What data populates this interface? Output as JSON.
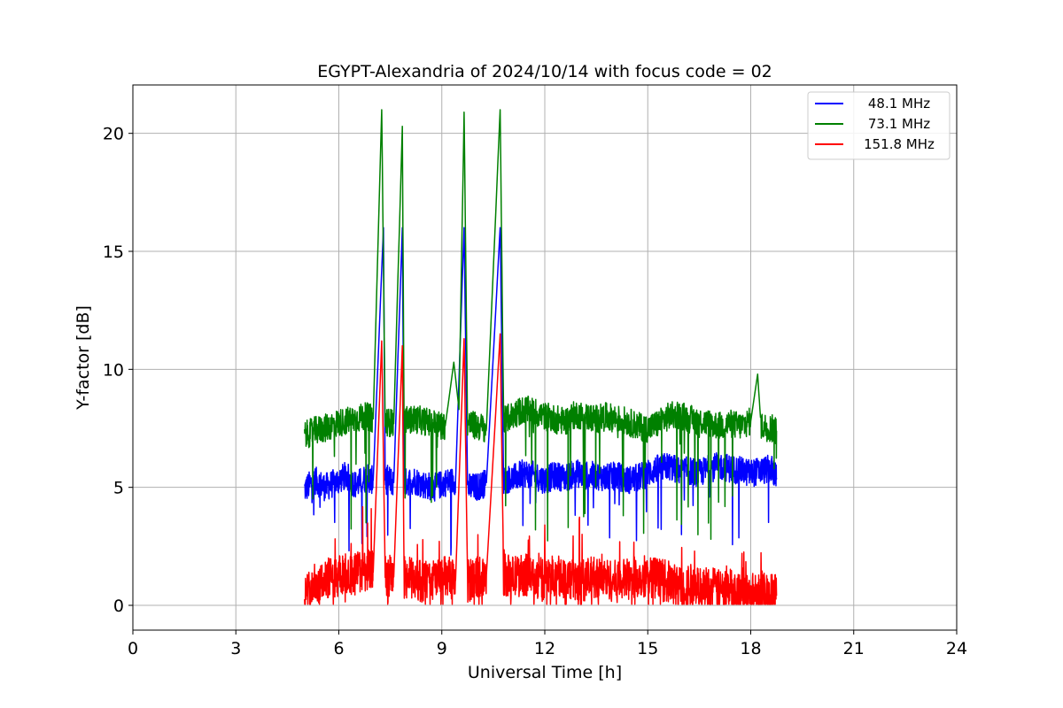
{
  "chart_data": {
    "type": "line",
    "title": "EGYPT-Alexandria of 2024/10/14 with focus code = 02",
    "xlabel": "Universal Time [h]",
    "ylabel": "Y-factor [dB]",
    "xlim": [
      0,
      24
    ],
    "ylim": [
      -1.05,
      22.05
    ],
    "x_ticks": [
      "0",
      "3",
      "6",
      "9",
      "12",
      "15",
      "18",
      "21",
      "24"
    ],
    "y_ticks": [
      "0",
      "5",
      "10",
      "15",
      "20"
    ],
    "grid": true,
    "legend_position": "top-right",
    "x_range_of_data": [
      5.0,
      18.75
    ],
    "series": [
      {
        "name": "48.1 MHz",
        "color": "#0000ff",
        "points": [
          [
            5.0,
            4.9
          ],
          [
            5.3,
            5.3
          ],
          [
            5.6,
            5.0
          ],
          [
            5.9,
            5.2
          ],
          [
            6.2,
            5.5
          ],
          [
            6.5,
            5.1
          ],
          [
            6.8,
            5.4
          ],
          [
            7.0,
            5.3
          ],
          [
            7.3,
            16.0
          ],
          [
            7.35,
            5.4
          ],
          [
            7.6,
            5.2
          ],
          [
            7.85,
            16.0
          ],
          [
            7.9,
            5.2
          ],
          [
            8.2,
            5.3
          ],
          [
            8.5,
            5.1
          ],
          [
            8.8,
            5.0
          ],
          [
            9.1,
            5.2
          ],
          [
            9.4,
            5.3
          ],
          [
            9.65,
            16.0
          ],
          [
            9.75,
            5.0
          ],
          [
            10.0,
            5.0
          ],
          [
            10.3,
            5.2
          ],
          [
            10.7,
            16.0
          ],
          [
            10.8,
            5.3
          ],
          [
            11.1,
            5.4
          ],
          [
            11.4,
            5.6
          ],
          [
            11.7,
            5.5
          ],
          [
            12.0,
            5.3
          ],
          [
            12.3,
            5.5
          ],
          [
            12.6,
            5.4
          ],
          [
            12.9,
            5.6
          ],
          [
            13.2,
            5.5
          ],
          [
            13.5,
            5.5
          ],
          [
            13.8,
            5.4
          ],
          [
            14.1,
            5.5
          ],
          [
            14.4,
            5.3
          ],
          [
            14.7,
            5.4
          ],
          [
            15.0,
            5.6
          ],
          [
            15.3,
            5.8
          ],
          [
            15.6,
            5.9
          ],
          [
            15.9,
            5.7
          ],
          [
            16.2,
            5.7
          ],
          [
            16.5,
            5.6
          ],
          [
            16.8,
            5.8
          ],
          [
            17.1,
            5.9
          ],
          [
            17.4,
            5.8
          ],
          [
            17.7,
            5.7
          ],
          [
            18.0,
            5.6
          ],
          [
            18.3,
            5.7
          ],
          [
            18.6,
            5.8
          ],
          [
            18.75,
            5.4
          ]
        ]
      },
      {
        "name": "73.1 MHz",
        "color": "#008000",
        "points": [
          [
            5.0,
            7.2
          ],
          [
            5.3,
            7.4
          ],
          [
            5.6,
            7.5
          ],
          [
            5.9,
            7.7
          ],
          [
            6.2,
            7.8
          ],
          [
            6.5,
            7.9
          ],
          [
            6.8,
            8.0
          ],
          [
            7.0,
            7.9
          ],
          [
            7.25,
            21.0
          ],
          [
            7.35,
            7.8
          ],
          [
            7.6,
            7.7
          ],
          [
            7.85,
            20.3
          ],
          [
            7.9,
            7.8
          ],
          [
            8.2,
            7.9
          ],
          [
            8.5,
            7.8
          ],
          [
            8.8,
            7.7
          ],
          [
            9.1,
            7.6
          ],
          [
            9.35,
            10.3
          ],
          [
            9.5,
            8.3
          ],
          [
            9.65,
            20.9
          ],
          [
            9.75,
            7.7
          ],
          [
            10.0,
            7.6
          ],
          [
            10.3,
            7.5
          ],
          [
            10.7,
            21.0
          ],
          [
            10.8,
            7.8
          ],
          [
            11.1,
            8.1
          ],
          [
            11.4,
            8.3
          ],
          [
            11.7,
            8.2
          ],
          [
            12.0,
            8.0
          ],
          [
            12.3,
            7.9
          ],
          [
            12.6,
            7.8
          ],
          [
            12.9,
            8.1
          ],
          [
            13.2,
            8.0
          ],
          [
            13.5,
            7.9
          ],
          [
            13.8,
            8.0
          ],
          [
            14.1,
            7.9
          ],
          [
            14.4,
            7.8
          ],
          [
            14.7,
            7.6
          ],
          [
            15.0,
            7.5
          ],
          [
            15.3,
            7.7
          ],
          [
            15.6,
            8.0
          ],
          [
            15.9,
            8.1
          ],
          [
            16.2,
            7.9
          ],
          [
            16.5,
            7.8
          ],
          [
            16.8,
            7.7
          ],
          [
            17.1,
            7.6
          ],
          [
            17.4,
            7.7
          ],
          [
            17.7,
            7.6
          ],
          [
            18.0,
            7.8
          ],
          [
            18.2,
            9.8
          ],
          [
            18.3,
            7.6
          ],
          [
            18.6,
            7.5
          ],
          [
            18.75,
            7.4
          ]
        ]
      },
      {
        "name": "151.8 MHz",
        "color": "#ff0000",
        "points": [
          [
            5.0,
            0.4
          ],
          [
            5.3,
            0.9
          ],
          [
            5.6,
            1.1
          ],
          [
            5.9,
            1.2
          ],
          [
            6.2,
            1.3
          ],
          [
            6.5,
            1.4
          ],
          [
            6.8,
            1.5
          ],
          [
            7.0,
            1.4
          ],
          [
            7.25,
            11.2
          ],
          [
            7.35,
            1.3
          ],
          [
            7.6,
            1.2
          ],
          [
            7.85,
            11.0
          ],
          [
            7.9,
            1.2
          ],
          [
            8.2,
            1.1
          ],
          [
            8.5,
            1.0
          ],
          [
            8.8,
            1.1
          ],
          [
            9.1,
            1.2
          ],
          [
            9.4,
            1.1
          ],
          [
            9.65,
            11.3
          ],
          [
            9.75,
            1.0
          ],
          [
            10.0,
            1.2
          ],
          [
            10.3,
            1.3
          ],
          [
            10.7,
            11.5
          ],
          [
            10.8,
            1.3
          ],
          [
            11.1,
            1.2
          ],
          [
            11.4,
            1.3
          ],
          [
            11.7,
            1.2
          ],
          [
            12.0,
            1.1
          ],
          [
            12.3,
            1.3
          ],
          [
            12.6,
            1.2
          ],
          [
            12.9,
            1.0
          ],
          [
            13.2,
            1.1
          ],
          [
            13.5,
            1.2
          ],
          [
            13.8,
            1.1
          ],
          [
            14.1,
            1.0
          ],
          [
            14.4,
            1.1
          ],
          [
            14.7,
            1.2
          ],
          [
            15.0,
            1.3
          ],
          [
            15.3,
            1.1
          ],
          [
            15.6,
            1.0
          ],
          [
            15.9,
            0.8
          ],
          [
            16.2,
            0.9
          ],
          [
            16.5,
            0.7
          ],
          [
            16.8,
            0.8
          ],
          [
            17.1,
            0.6
          ],
          [
            17.4,
            0.7
          ],
          [
            17.7,
            0.6
          ],
          [
            18.0,
            0.5
          ],
          [
            18.3,
            0.6
          ],
          [
            18.6,
            0.5
          ],
          [
            18.75,
            0.4
          ]
        ]
      }
    ]
  }
}
